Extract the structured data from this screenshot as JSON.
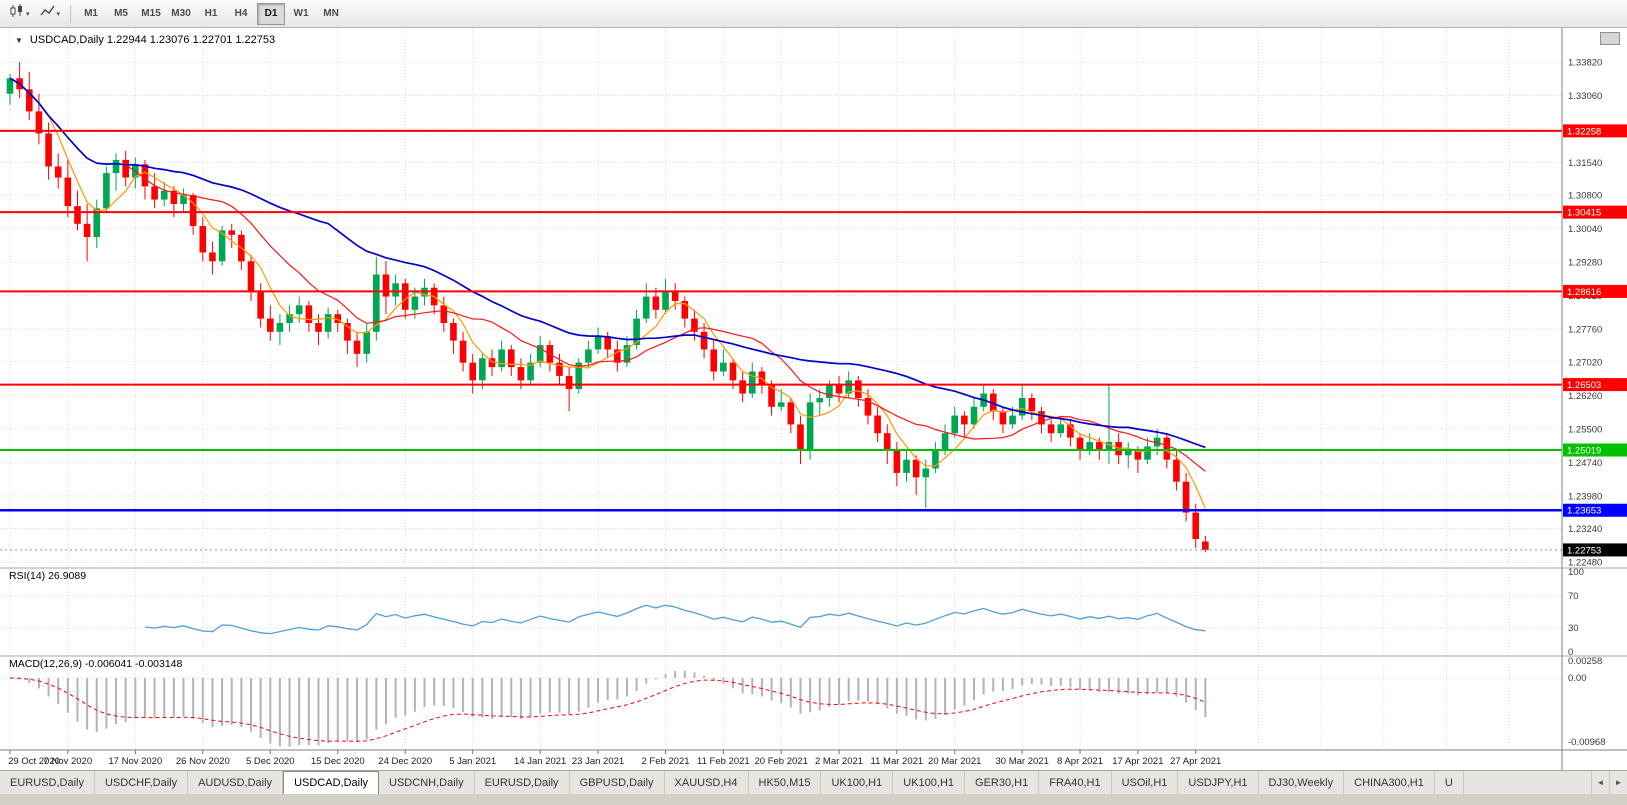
{
  "toolbar": {
    "timeframes": [
      {
        "label": "M1",
        "active": false
      },
      {
        "label": "M5",
        "active": false
      },
      {
        "label": "M15",
        "active": false
      },
      {
        "label": "M30",
        "active": false
      },
      {
        "label": "H1",
        "active": false
      },
      {
        "label": "H4",
        "active": false
      },
      {
        "label": "D1",
        "active": true
      },
      {
        "label": "W1",
        "active": false
      },
      {
        "label": "MN",
        "active": false
      }
    ]
  },
  "chart": {
    "one_click_arrow": "▼",
    "title": "USDCAD,Daily 1.22944 1.23076 1.22701 1.22753"
  },
  "rsi_overlay": {
    "text": "RSI(14) 26.9089"
  },
  "macd_overlay": {
    "text": "MACD(12,26,9) -0.006041 -0.003148"
  },
  "chart_data": {
    "type": "candlestick",
    "symbol": "USDCAD",
    "timeframe": "Daily",
    "quote": {
      "open": 1.22944,
      "high": 1.23076,
      "low": 1.22701,
      "close": 1.22753
    },
    "ylim": [
      1.22343,
      1.34591
    ],
    "y_ticks": [
      {
        "p": 1.3382,
        "label": "1.33820"
      },
      {
        "p": 1.3306,
        "label": "1.33060"
      },
      {
        "p": 1.3154,
        "label": "1.31540"
      },
      {
        "p": 1.308,
        "label": "1.30800"
      },
      {
        "p": 1.3004,
        "label": "1.30040"
      },
      {
        "p": 1.2928,
        "label": "1.29280"
      },
      {
        "p": 1.2852,
        "label": "1.28520"
      },
      {
        "p": 1.2776,
        "label": "1.27760"
      },
      {
        "p": 1.2702,
        "label": "1.27020"
      },
      {
        "p": 1.2626,
        "label": "1.26260"
      },
      {
        "p": 1.255,
        "label": "1.25500"
      },
      {
        "p": 1.2474,
        "label": "1.24740"
      },
      {
        "p": 1.2398,
        "label": "1.23980"
      },
      {
        "p": 1.2324,
        "label": "1.23240"
      },
      {
        "p": 1.2248,
        "label": "1.22480"
      }
    ],
    "hidden_grid_prices": [
      1.323
    ],
    "candles": [
      [
        1.331,
        1.3355,
        1.3285,
        1.3345
      ],
      [
        1.3345,
        1.3382,
        1.33,
        1.332
      ],
      [
        1.332,
        1.336,
        1.325,
        1.327
      ],
      [
        1.327,
        1.331,
        1.3195,
        1.322
      ],
      [
        1.322,
        1.3245,
        1.3115,
        1.3145
      ],
      [
        1.3145,
        1.3175,
        1.3095,
        1.312
      ],
      [
        1.312,
        1.316,
        1.303,
        1.3055
      ],
      [
        1.3055,
        1.309,
        1.3,
        1.3015
      ],
      [
        1.3015,
        1.306,
        1.293,
        1.2985
      ],
      [
        1.2985,
        1.307,
        1.296,
        1.305
      ],
      [
        1.305,
        1.3145,
        1.304,
        1.313
      ],
      [
        1.313,
        1.3175,
        1.309,
        1.316
      ],
      [
        1.316,
        1.318,
        1.31,
        1.312
      ],
      [
        1.312,
        1.3165,
        1.3095,
        1.315
      ],
      [
        1.315,
        1.316,
        1.307,
        1.31
      ],
      [
        1.31,
        1.313,
        1.305,
        1.307
      ],
      [
        1.307,
        1.311,
        1.3055,
        1.309
      ],
      [
        1.309,
        1.31,
        1.303,
        1.306
      ],
      [
        1.306,
        1.3095,
        1.304,
        1.308
      ],
      [
        1.308,
        1.3085,
        1.299,
        1.301
      ],
      [
        1.301,
        1.303,
        1.293,
        1.295
      ],
      [
        1.295,
        1.2975,
        1.29,
        1.293
      ],
      [
        1.293,
        1.301,
        1.292,
        1.3
      ],
      [
        1.3,
        1.3015,
        1.296,
        1.299
      ],
      [
        1.299,
        1.3,
        1.291,
        1.293
      ],
      [
        1.293,
        1.2945,
        1.284,
        1.286
      ],
      [
        1.286,
        1.288,
        1.278,
        1.28
      ],
      [
        1.28,
        1.283,
        1.275,
        1.277
      ],
      [
        1.277,
        1.281,
        1.274,
        1.279
      ],
      [
        1.279,
        1.283,
        1.277,
        1.281
      ],
      [
        1.281,
        1.285,
        1.279,
        1.283
      ],
      [
        1.283,
        1.284,
        1.277,
        1.279
      ],
      [
        1.279,
        1.281,
        1.274,
        1.277
      ],
      [
        1.277,
        1.2825,
        1.2755,
        1.281
      ],
      [
        1.281,
        1.282,
        1.277,
        1.279
      ],
      [
        1.279,
        1.28,
        1.272,
        1.275
      ],
      [
        1.275,
        1.277,
        1.269,
        1.272
      ],
      [
        1.272,
        1.279,
        1.27,
        1.277
      ],
      [
        1.277,
        1.294,
        1.275,
        1.29
      ],
      [
        1.29,
        1.293,
        1.281,
        1.285
      ],
      [
        1.285,
        1.29,
        1.283,
        1.288
      ],
      [
        1.288,
        1.289,
        1.28,
        1.282
      ],
      [
        1.282,
        1.287,
        1.28,
        1.285
      ],
      [
        1.285,
        1.289,
        1.283,
        1.287
      ],
      [
        1.287,
        1.288,
        1.281,
        1.283
      ],
      [
        1.283,
        1.285,
        1.277,
        1.279
      ],
      [
        1.279,
        1.28,
        1.272,
        1.275
      ],
      [
        1.275,
        1.277,
        1.268,
        1.27
      ],
      [
        1.27,
        1.272,
        1.263,
        1.266
      ],
      [
        1.266,
        1.272,
        1.264,
        1.271
      ],
      [
        1.271,
        1.273,
        1.267,
        1.269
      ],
      [
        1.269,
        1.275,
        1.268,
        1.273
      ],
      [
        1.273,
        1.274,
        1.267,
        1.269
      ],
      [
        1.269,
        1.271,
        1.264,
        1.266
      ],
      [
        1.266,
        1.272,
        1.265,
        1.27
      ],
      [
        1.27,
        1.276,
        1.269,
        1.274
      ],
      [
        1.274,
        1.275,
        1.268,
        1.27
      ],
      [
        1.27,
        1.272,
        1.265,
        1.267
      ],
      [
        1.267,
        1.269,
        1.259,
        1.264
      ],
      [
        1.264,
        1.271,
        1.263,
        1.27
      ],
      [
        1.27,
        1.275,
        1.269,
        1.273
      ],
      [
        1.273,
        1.278,
        1.272,
        1.276
      ],
      [
        1.276,
        1.277,
        1.271,
        1.273
      ],
      [
        1.273,
        1.275,
        1.268,
        1.27
      ],
      [
        1.27,
        1.276,
        1.269,
        1.274
      ],
      [
        1.274,
        1.282,
        1.273,
        1.28
      ],
      [
        1.28,
        1.288,
        1.279,
        1.285
      ],
      [
        1.285,
        1.287,
        1.28,
        1.282
      ],
      [
        1.282,
        1.289,
        1.281,
        1.286
      ],
      [
        1.286,
        1.288,
        1.282,
        1.284
      ],
      [
        1.284,
        1.285,
        1.278,
        1.28
      ],
      [
        1.28,
        1.282,
        1.275,
        1.277
      ],
      [
        1.277,
        1.279,
        1.271,
        1.273
      ],
      [
        1.273,
        1.275,
        1.266,
        1.268
      ],
      [
        1.268,
        1.273,
        1.267,
        1.27
      ],
      [
        1.27,
        1.271,
        1.264,
        1.266
      ],
      [
        1.266,
        1.268,
        1.261,
        1.263
      ],
      [
        1.263,
        1.27,
        1.262,
        1.268
      ],
      [
        1.268,
        1.269,
        1.263,
        1.265
      ],
      [
        1.265,
        1.266,
        1.258,
        1.26
      ],
      [
        1.26,
        1.264,
        1.259,
        1.261
      ],
      [
        1.261,
        1.262,
        1.254,
        1.256
      ],
      [
        1.256,
        1.258,
        1.247,
        1.25
      ],
      [
        1.25,
        1.263,
        1.248,
        1.261
      ],
      [
        1.261,
        1.264,
        1.258,
        1.262
      ],
      [
        1.262,
        1.266,
        1.26,
        1.265
      ],
      [
        1.265,
        1.267,
        1.261,
        1.263
      ],
      [
        1.263,
        1.268,
        1.262,
        1.266
      ],
      [
        1.266,
        1.267,
        1.26,
        1.262
      ],
      [
        1.262,
        1.264,
        1.256,
        1.258
      ],
      [
        1.258,
        1.26,
        1.252,
        1.254
      ],
      [
        1.254,
        1.256,
        1.247,
        1.25
      ],
      [
        1.25,
        1.252,
        1.242,
        1.245
      ],
      [
        1.245,
        1.25,
        1.243,
        1.248
      ],
      [
        1.248,
        1.249,
        1.24,
        1.244
      ],
      [
        1.244,
        1.248,
        1.237,
        1.246
      ],
      [
        1.246,
        1.252,
        1.245,
        1.25
      ],
      [
        1.25,
        1.256,
        1.249,
        1.254
      ],
      [
        1.254,
        1.26,
        1.253,
        1.258
      ],
      [
        1.258,
        1.259,
        1.253,
        1.256
      ],
      [
        1.256,
        1.262,
        1.255,
        1.26
      ],
      [
        1.26,
        1.265,
        1.259,
        1.263
      ],
      [
        1.263,
        1.264,
        1.257,
        1.259
      ],
      [
        1.259,
        1.26,
        1.254,
        1.256
      ],
      [
        1.256,
        1.26,
        1.255,
        1.258
      ],
      [
        1.258,
        1.265,
        1.257,
        1.262
      ],
      [
        1.262,
        1.263,
        1.257,
        1.259
      ],
      [
        1.259,
        1.26,
        1.254,
        1.256
      ],
      [
        1.256,
        1.257,
        1.252,
        1.254
      ],
      [
        1.254,
        1.258,
        1.253,
        1.256
      ],
      [
        1.256,
        1.257,
        1.251,
        1.253
      ],
      [
        1.253,
        1.254,
        1.248,
        1.25
      ],
      [
        1.25,
        1.254,
        1.249,
        1.252
      ],
      [
        1.252,
        1.253,
        1.248,
        1.25
      ],
      [
        1.25,
        1.265,
        1.247,
        1.252
      ],
      [
        1.252,
        1.254,
        1.247,
        1.249
      ],
      [
        1.249,
        1.252,
        1.246,
        1.25
      ],
      [
        1.25,
        1.251,
        1.245,
        1.248
      ],
      [
        1.248,
        1.253,
        1.247,
        1.251
      ],
      [
        1.251,
        1.255,
        1.249,
        1.253
      ],
      [
        1.253,
        1.254,
        1.246,
        1.248
      ],
      [
        1.248,
        1.25,
        1.241,
        1.243
      ],
      [
        1.243,
        1.245,
        1.234,
        1.236
      ],
      [
        1.236,
        1.238,
        1.228,
        1.23
      ],
      [
        1.22944,
        1.23076,
        1.22701,
        1.22753
      ]
    ],
    "date_marks": [
      {
        "i": 0,
        "label": "29 Oct 2020"
      },
      {
        "i": 6,
        "label": "7 Nov 2020"
      },
      {
        "i": 13,
        "label": "17 Nov 2020"
      },
      {
        "i": 20,
        "label": "26 Nov 2020"
      },
      {
        "i": 27,
        "label": "5 Dec 2020"
      },
      {
        "i": 34,
        "label": "15 Dec 2020"
      },
      {
        "i": 41,
        "label": "24 Dec 2020"
      },
      {
        "i": 48,
        "label": "5 Jan 2021"
      },
      {
        "i": 55,
        "label": "14 Jan 2021"
      },
      {
        "i": 61,
        "label": "23 Jan 2021"
      },
      {
        "i": 68,
        "label": "2 Feb 2021"
      },
      {
        "i": 74,
        "label": "11 Feb 2021"
      },
      {
        "i": 80,
        "label": "20 Feb 2021"
      },
      {
        "i": 86,
        "label": "2 Mar 2021"
      },
      {
        "i": 92,
        "label": "11 Mar 2021"
      },
      {
        "i": 98,
        "label": "20 Mar 2021"
      },
      {
        "i": 105,
        "label": "30 Mar 2021"
      },
      {
        "i": 111,
        "label": "8 Apr 2021"
      },
      {
        "i": 117,
        "label": "17 Apr 2021"
      },
      {
        "i": 123,
        "label": "27 Apr 2021"
      }
    ],
    "h_lines": [
      {
        "price": 1.32258,
        "label": "1.32258",
        "color": "#ff0000",
        "width": 2
      },
      {
        "price": 1.30415,
        "label": "1.30415",
        "color": "#ff0000",
        "width": 2
      },
      {
        "price": 1.28616,
        "label": "1.28616",
        "color": "#ff0000",
        "width": 2
      },
      {
        "price": 1.26503,
        "label": "1.26503",
        "color": "#ff0000",
        "width": 2
      },
      {
        "price": 1.25019,
        "label": "1.25019",
        "color": "#00c000",
        "width": 2
      },
      {
        "price": 1.23653,
        "label": "1.23653",
        "color": "#0000ff",
        "width": 2.5
      }
    ],
    "current_price": {
      "price": 1.22753,
      "label": "1.22753",
      "color": "#000000"
    },
    "moving_averages": [
      {
        "period": 5,
        "type": "sma",
        "color": "#ff9900",
        "width": 1.2
      },
      {
        "period": 13,
        "type": "sma",
        "color": "#ff1515",
        "width": 1.2
      },
      {
        "period": 34,
        "type": "sma",
        "color": "#0000cc",
        "width": 1.7
      }
    ],
    "colors": {
      "bull": "#00a651",
      "bear": "#ff0000",
      "grid": "#dadada",
      "background": "#ffffff"
    },
    "rsi": {
      "period": 14,
      "value": 26.9089,
      "levels": [
        70,
        30
      ],
      "axis_labels": [
        {
          "v": 100,
          "label": "100"
        },
        {
          "v": 70,
          "label": "70"
        },
        {
          "v": 30,
          "label": "30"
        },
        {
          "v": 0,
          "label": "0"
        }
      ],
      "color": "#4f9fd8",
      "range": [
        0,
        100
      ]
    },
    "macd": {
      "fast": 12,
      "slow": 26,
      "signal_period": 9,
      "main_value": -0.006041,
      "signal_value": -0.003148,
      "hist_color": "#b2b2bc",
      "signal_color": "#ff0000",
      "axis_ticks": [
        {
          "v": 0.00258,
          "label": "0.00258"
        },
        {
          "v": 0,
          "label": "0.00"
        },
        {
          "v": -0.00968,
          "label": "-0.00968"
        }
      ]
    }
  },
  "tabs": {
    "items": [
      {
        "label": "EURUSD,Daily",
        "active": false
      },
      {
        "label": "USDCHF,Daily",
        "active": false
      },
      {
        "label": "AUDUSD,Daily",
        "active": false
      },
      {
        "label": "USDCAD,Daily",
        "active": true
      },
      {
        "label": "USDCNH,Daily",
        "active": false
      },
      {
        "label": "EURUSD,Daily",
        "active": false
      },
      {
        "label": "GBPUSD,Daily",
        "active": false
      },
      {
        "label": "XAUUSD,H4",
        "active": false
      },
      {
        "label": "HK50,M15",
        "active": false
      },
      {
        "label": "UK100,H1",
        "active": false
      },
      {
        "label": "UK100,H1",
        "active": false
      },
      {
        "label": "GER30,H1",
        "active": false
      },
      {
        "label": "FRA40,H1",
        "active": false
      },
      {
        "label": "USOil,H1",
        "active": false
      },
      {
        "label": "USDJPY,H1",
        "active": false
      },
      {
        "label": "DJ30,Weekly",
        "active": false
      },
      {
        "label": "CHINA300,H1",
        "active": false
      },
      {
        "label": "U",
        "active": false
      }
    ],
    "scroll_left": "◄",
    "scroll_right": "►"
  }
}
